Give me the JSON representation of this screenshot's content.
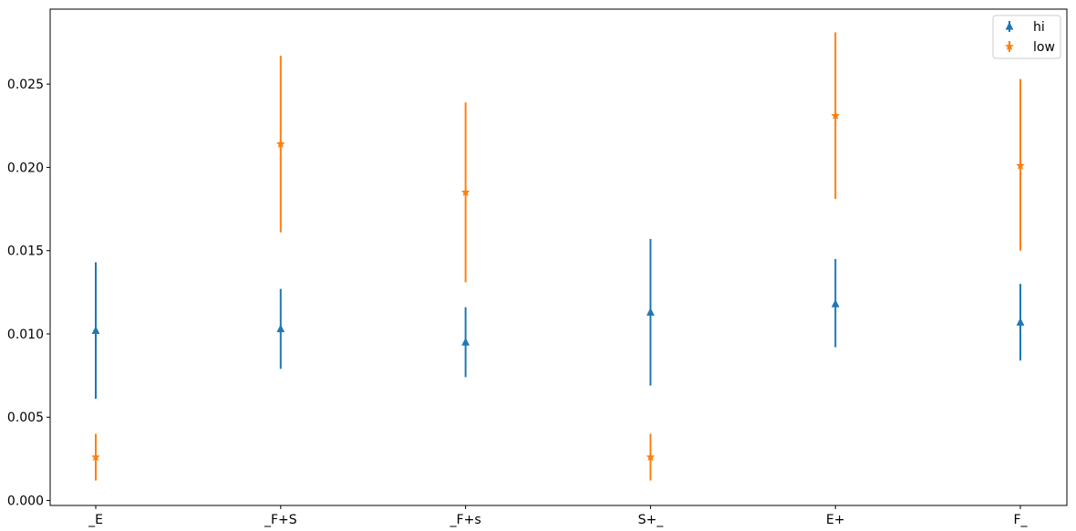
{
  "chart_data": {
    "type": "scatter",
    "categories": [
      "_E",
      "_F+S",
      "_F+s",
      "S+_",
      "E+",
      "F_"
    ],
    "ylim": [
      -0.0003,
      0.0295
    ],
    "yticks": [
      0.0,
      0.005,
      0.01,
      0.015,
      0.02,
      0.025
    ],
    "ytick_labels": [
      "0.000",
      "0.005",
      "0.010",
      "0.015",
      "0.020",
      "0.025"
    ],
    "grid": false,
    "legend_position": "top-right",
    "series": [
      {
        "name": "hi",
        "marker": "triangle",
        "color": "#1f77b4",
        "values": [
          0.0102,
          0.0103,
          0.0095,
          0.0113,
          0.0118,
          0.0107
        ],
        "err_low": [
          0.0061,
          0.0079,
          0.0074,
          0.0069,
          0.0092,
          0.0084
        ],
        "err_high": [
          0.0143,
          0.0127,
          0.0116,
          0.0157,
          0.0145,
          0.013
        ]
      },
      {
        "name": "low",
        "marker": "star",
        "color": "#ff7f0e",
        "values": [
          0.0026,
          0.0214,
          0.0185,
          0.0026,
          0.0231,
          0.0201
        ],
        "err_low": [
          0.0012,
          0.0161,
          0.0131,
          0.0012,
          0.0181,
          0.015
        ],
        "err_high": [
          0.004,
          0.0267,
          0.0239,
          0.004,
          0.0281,
          0.0253
        ]
      }
    ]
  }
}
